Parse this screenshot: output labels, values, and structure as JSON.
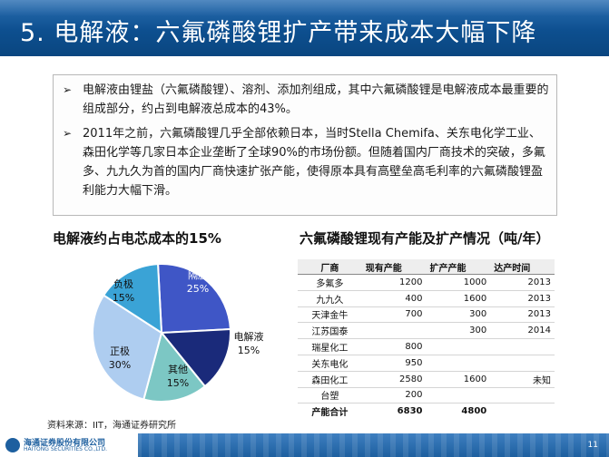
{
  "header": {
    "title": "5. 电解液：六氟磷酸锂扩产带来成本大幅下降"
  },
  "bullets": [
    {
      "marker": "➢",
      "text": "电解液由锂盐（六氟磷酸锂）、溶剂、添加剂组成，其中六氟磷酸锂是电解液成本最重要的组成部分，约占到电解液总成本的43%。"
    },
    {
      "marker": "➢",
      "text": "2011年之前，六氟磷酸锂几乎全部依赖日本，当时Stella Chemifa、关东电化学工业、森田化学等几家日本企业垄断了全球90%的市场份额。但随着国内厂商技术的突破，多氟多、九九久为首的国内厂商快速扩张产能，使得原本具有高壁垒高毛利率的六氟磷酸锂盈利能力大幅下滑。"
    }
  ],
  "chart_data": {
    "type": "pie",
    "title": "电解液约占电芯成本的15%",
    "categories": [
      "隔膜",
      "电解液",
      "其他",
      "正极",
      "负极"
    ],
    "values": [
      25,
      15,
      15,
      30,
      15
    ],
    "colors": [
      "#3f56c6",
      "#1a2a7a",
      "#7cc7c4",
      "#aecdf0",
      "#3aa3d6"
    ],
    "value_labels": [
      "25%",
      "15%",
      "15%",
      "30%",
      "15%"
    ]
  },
  "table": {
    "title": "六氟磷酸锂现有产能及扩产情况（吨/年）",
    "headers": [
      "厂商",
      "现有产能",
      "扩产产能",
      "达产时间"
    ],
    "rows": [
      [
        "多氟多",
        "1200",
        "1000",
        "2013"
      ],
      [
        "九九久",
        "400",
        "1600",
        "2013"
      ],
      [
        "天津金牛",
        "700",
        "300",
        "2013"
      ],
      [
        "江苏国泰",
        "",
        "300",
        "2014"
      ],
      [
        "瑞星化工",
        "800",
        "",
        ""
      ],
      [
        "关东电化",
        "950",
        "",
        ""
      ],
      [
        "森田化工",
        "2580",
        "1600",
        "未知"
      ],
      [
        "台塑",
        "200",
        "",
        ""
      ]
    ],
    "total": [
      "产能合计",
      "6830",
      "4800",
      ""
    ]
  },
  "source": "资料来源：IIT，海通证券研究所",
  "footer": {
    "logo_cn": "海通证券股份有限公司",
    "logo_en": "HAITONG SECURITIES CO.,LTD.",
    "page_number": "11"
  }
}
